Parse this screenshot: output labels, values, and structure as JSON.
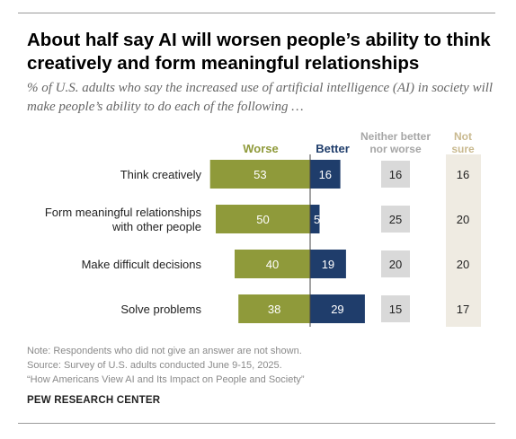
{
  "title": "About half say AI will worsen people’s ability to think creatively and form meaningful relationships",
  "subtitle": "% of U.S. adults who say the increased use of artificial intelligence (AI) in society will make people’s ability to do each of the following …",
  "colors": {
    "worse": "#8f9a3a",
    "better": "#1f3d6b",
    "neither": "#d9d9d9",
    "not_sure_panel": "#efebe2",
    "header_worse": "#8f9a3a",
    "header_better": "#1f3d6b",
    "header_gray": "#a6a6a6",
    "header_notsure": "#c9b98f"
  },
  "chart_data": {
    "type": "bar",
    "orientation": "horizontal-diverging",
    "categories": [
      [
        "Think creatively"
      ],
      [
        "Form meaningful relationships",
        "with other people"
      ],
      [
        "Make difficult decisions"
      ],
      [
        "Solve problems"
      ]
    ],
    "column_headers": {
      "worse": [
        "Worse"
      ],
      "better": [
        "Better"
      ],
      "neither": [
        "Neither better",
        "nor worse"
      ],
      "not_sure": [
        "Not",
        "sure"
      ]
    },
    "series": [
      {
        "name": "Worse",
        "values": [
          53,
          50,
          40,
          38
        ]
      },
      {
        "name": "Better",
        "values": [
          16,
          5,
          19,
          29
        ]
      },
      {
        "name": "Neither better nor worse",
        "values": [
          16,
          25,
          20,
          15
        ]
      },
      {
        "name": "Not sure",
        "values": [
          16,
          20,
          20,
          17
        ]
      }
    ]
  },
  "notes": [
    "Note: Respondents who did not give an answer are not shown.",
    "Source: Survey of U.S. adults conducted June 9-15, 2025.",
    "“How Americans View AI and Its Impact on People and Society”"
  ],
  "brand": "PEW RESEARCH CENTER"
}
